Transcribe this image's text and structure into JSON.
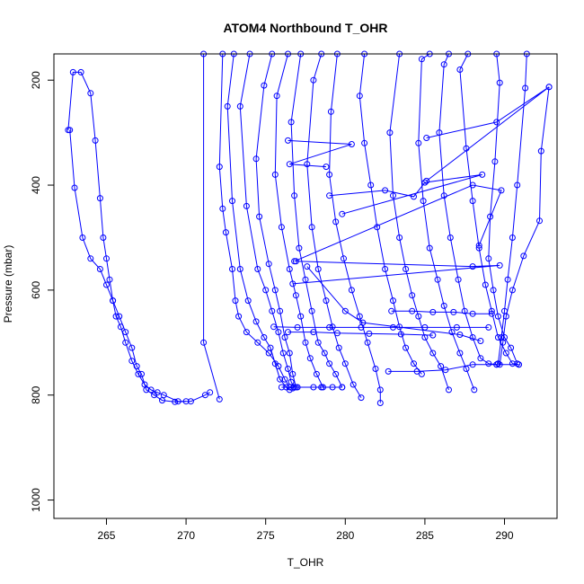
{
  "chart_data": {
    "type": "line",
    "title": "ATOM4 Northbound T_OHR",
    "xlabel": "T_OHR",
    "ylabel": "Pressure (mbar)",
    "xlim": [
      261.7,
      293.3
    ],
    "ylim": [
      1035,
      150
    ],
    "y_reversed": true,
    "grid": false,
    "legend": "none",
    "x_ticks": [
      265,
      270,
      275,
      280,
      285,
      290
    ],
    "x_tick_labels": [
      "265",
      "270",
      "275",
      "280",
      "285",
      "290"
    ],
    "y_ticks": [
      200,
      400,
      600,
      800,
      1000
    ],
    "y_tick_labels": [
      "200",
      "400",
      "600",
      "800",
      "1000"
    ],
    "color": "#0000ff",
    "marker": "open-circle",
    "series": [
      {
        "values": [
          [
            262.7,
            295
          ],
          [
            263.0,
            405
          ],
          [
            263.5,
            500
          ],
          [
            264.0,
            540
          ],
          [
            264.6,
            560
          ],
          [
            265.0,
            590
          ],
          [
            265.4,
            620
          ],
          [
            265.8,
            650
          ],
          [
            266.2,
            680
          ],
          [
            266.6,
            710
          ],
          [
            266.9,
            745
          ],
          [
            267.2,
            760
          ],
          [
            267.5,
            790
          ],
          [
            268.0,
            800
          ],
          [
            268.5,
            810
          ],
          [
            269.3,
            813
          ],
          [
            270.0,
            812
          ]
        ]
      },
      {
        "values": [
          [
            262.6,
            295
          ],
          [
            262.9,
            185
          ],
          [
            263.4,
            185
          ],
          [
            264.0,
            225
          ],
          [
            264.3,
            315
          ],
          [
            264.6,
            425
          ],
          [
            264.8,
            500
          ],
          [
            265.0,
            540
          ],
          [
            265.2,
            580
          ],
          [
            265.4,
            620
          ],
          [
            265.6,
            650
          ],
          [
            265.9,
            670
          ],
          [
            266.2,
            700
          ],
          [
            266.6,
            735
          ],
          [
            267.0,
            760
          ],
          [
            267.4,
            780
          ],
          [
            267.8,
            790
          ],
          [
            268.2,
            795
          ],
          [
            268.6,
            800
          ],
          [
            269.5,
            812
          ],
          [
            270.3,
            812
          ],
          [
            271.2,
            800
          ],
          [
            271.5,
            795
          ]
        ]
      },
      {
        "values": [
          [
            271.1,
            150
          ],
          [
            271.1,
            700
          ],
          [
            272.1,
            808
          ]
        ]
      },
      {
        "values": [
          [
            272.3,
            150
          ],
          [
            272.1,
            365
          ],
          [
            272.3,
            445
          ],
          [
            272.5,
            490
          ],
          [
            272.9,
            560
          ],
          [
            273.1,
            620
          ],
          [
            273.3,
            650
          ],
          [
            273.8,
            680
          ],
          [
            274.5,
            700
          ],
          [
            275.2,
            720
          ],
          [
            275.8,
            745
          ],
          [
            276.2,
            770
          ],
          [
            276.5,
            785
          ],
          [
            276.7,
            787
          ]
        ]
      },
      {
        "values": [
          [
            273.0,
            150
          ],
          [
            272.6,
            250
          ],
          [
            272.9,
            430
          ],
          [
            273.4,
            560
          ],
          [
            273.9,
            620
          ],
          [
            274.4,
            660
          ],
          [
            274.9,
            690
          ],
          [
            275.3,
            710
          ],
          [
            275.6,
            740
          ],
          [
            275.9,
            770
          ],
          [
            276.3,
            785
          ],
          [
            276.5,
            790
          ]
        ]
      },
      {
        "values": [
          [
            274.0,
            150
          ],
          [
            273.4,
            250
          ],
          [
            273.8,
            440
          ],
          [
            274.5,
            560
          ],
          [
            275.0,
            600
          ],
          [
            275.4,
            640
          ],
          [
            275.8,
            680
          ],
          [
            276.1,
            720
          ],
          [
            276.4,
            750
          ],
          [
            276.6,
            775
          ],
          [
            276.8,
            785
          ]
        ]
      },
      {
        "values": [
          [
            275.4,
            150
          ],
          [
            274.9,
            210
          ],
          [
            274.4,
            350
          ],
          [
            274.6,
            460
          ],
          [
            275.2,
            550
          ],
          [
            275.6,
            600
          ],
          [
            275.9,
            640
          ],
          [
            276.2,
            690
          ],
          [
            276.5,
            720
          ],
          [
            276.7,
            760
          ],
          [
            276.9,
            785
          ]
        ]
      },
      {
        "values": [
          [
            276.4,
            150
          ],
          [
            275.7,
            230
          ],
          [
            275.6,
            380
          ],
          [
            276.0,
            480
          ],
          [
            276.5,
            560
          ],
          [
            276.9,
            610
          ],
          [
            277.2,
            650
          ],
          [
            277.5,
            700
          ],
          [
            277.8,
            730
          ],
          [
            278.2,
            760
          ],
          [
            278.6,
            785
          ]
        ]
      },
      {
        "values": [
          [
            277.2,
            150
          ],
          [
            276.6,
            280
          ],
          [
            276.8,
            420
          ],
          [
            277.1,
            520
          ],
          [
            277.5,
            580
          ],
          [
            277.9,
            640
          ],
          [
            278.3,
            700
          ],
          [
            278.7,
            720
          ],
          [
            279.0,
            740
          ],
          [
            279.4,
            760
          ],
          [
            279.8,
            785
          ]
        ]
      },
      {
        "values": [
          [
            278.5,
            150
          ],
          [
            278.0,
            200
          ],
          [
            277.6,
            360
          ],
          [
            277.9,
            480
          ],
          [
            278.3,
            560
          ],
          [
            278.8,
            620
          ],
          [
            279.2,
            670
          ],
          [
            279.6,
            710
          ],
          [
            280.0,
            740
          ],
          [
            280.5,
            780
          ],
          [
            281.0,
            805
          ]
        ]
      },
      {
        "values": [
          [
            279.5,
            150
          ],
          [
            279.1,
            260
          ],
          [
            279.0,
            380
          ],
          [
            279.4,
            470
          ],
          [
            279.9,
            540
          ],
          [
            280.4,
            600
          ],
          [
            280.9,
            650
          ],
          [
            281.4,
            700
          ],
          [
            281.9,
            750
          ],
          [
            282.2,
            790
          ],
          [
            282.2,
            815
          ]
        ]
      },
      {
        "values": [
          [
            281.2,
            150
          ],
          [
            280.9,
            230
          ],
          [
            281.2,
            320
          ],
          [
            281.6,
            400
          ],
          [
            282.0,
            480
          ],
          [
            282.5,
            560
          ],
          [
            283.0,
            620
          ],
          [
            283.4,
            670
          ],
          [
            283.8,
            710
          ],
          [
            284.3,
            740
          ],
          [
            284.8,
            760
          ]
        ]
      },
      {
        "values": [
          [
            283.4,
            150
          ],
          [
            282.8,
            300
          ],
          [
            283.0,
            420
          ],
          [
            283.4,
            500
          ],
          [
            283.8,
            560
          ],
          [
            284.2,
            610
          ],
          [
            284.6,
            650
          ],
          [
            285.0,
            690
          ],
          [
            285.5,
            720
          ],
          [
            286.0,
            745
          ],
          [
            286.5,
            790
          ]
        ]
      },
      {
        "values": [
          [
            285.3,
            150
          ],
          [
            284.8,
            160
          ],
          [
            284.6,
            320
          ],
          [
            284.9,
            430
          ],
          [
            285.3,
            520
          ],
          [
            285.8,
            580
          ],
          [
            286.2,
            630
          ],
          [
            286.7,
            680
          ],
          [
            287.2,
            720
          ],
          [
            287.6,
            750
          ],
          [
            288.1,
            790
          ]
        ]
      },
      {
        "values": [
          [
            286.5,
            150
          ],
          [
            286.2,
            170
          ],
          [
            285.9,
            300
          ],
          [
            286.2,
            420
          ],
          [
            286.6,
            500
          ],
          [
            287.1,
            580
          ],
          [
            287.5,
            640
          ],
          [
            288.0,
            690
          ],
          [
            288.5,
            730
          ],
          [
            289.0,
            740
          ],
          [
            289.5,
            742
          ]
        ]
      },
      {
        "values": [
          [
            287.7,
            150
          ],
          [
            287.2,
            180
          ],
          [
            287.6,
            330
          ],
          [
            288.0,
            430
          ],
          [
            288.4,
            520
          ],
          [
            288.8,
            590
          ],
          [
            289.2,
            640
          ],
          [
            289.6,
            690
          ],
          [
            290.1,
            720
          ],
          [
            290.5,
            740
          ],
          [
            290.9,
            742
          ]
        ]
      },
      {
        "values": [
          [
            289.5,
            150
          ],
          [
            289.7,
            205
          ],
          [
            289.4,
            355
          ],
          [
            289.1,
            460
          ],
          [
            289.0,
            540
          ],
          [
            289.3,
            600
          ],
          [
            289.6,
            650
          ],
          [
            290.0,
            690
          ],
          [
            290.4,
            710
          ],
          [
            290.8,
            740
          ]
        ]
      },
      {
        "values": [
          [
            291.4,
            150
          ],
          [
            291.3,
            215
          ],
          [
            290.8,
            400
          ],
          [
            290.5,
            500
          ],
          [
            290.2,
            580
          ],
          [
            290.0,
            640
          ],
          [
            289.8,
            690
          ],
          [
            289.6,
            740
          ]
        ]
      },
      {
        "values": [
          [
            292.8,
            213
          ],
          [
            292.3,
            335
          ],
          [
            292.2,
            468
          ],
          [
            291.2,
            535
          ],
          [
            290.5,
            600
          ],
          [
            290.1,
            650
          ],
          [
            289.9,
            700
          ],
          [
            289.7,
            742
          ]
        ]
      },
      {
        "values": [
          [
            276.7,
            588
          ],
          [
            289.7,
            553
          ],
          [
            288.0,
            555
          ],
          [
            276.9,
            545
          ]
        ]
      },
      {
        "values": [
          [
            275.5,
            670
          ],
          [
            277.0,
            671
          ],
          [
            279.0,
            671
          ],
          [
            281.0,
            671
          ],
          [
            283.0,
            671
          ],
          [
            285.0,
            671
          ],
          [
            287.0,
            671
          ],
          [
            289.0,
            671
          ]
        ]
      },
      {
        "values": [
          [
            276.4,
            680
          ],
          [
            278.0,
            680
          ],
          [
            279.5,
            682
          ],
          [
            281.5,
            683
          ],
          [
            283.5,
            684
          ],
          [
            285.5,
            686
          ]
        ]
      },
      {
        "values": [
          [
            282.7,
            755
          ],
          [
            284.5,
            755
          ],
          [
            286.3,
            752
          ],
          [
            288.0,
            742
          ],
          [
            289.5,
            742
          ],
          [
            290.9,
            742
          ]
        ]
      },
      {
        "values": [
          [
            276.0,
            785
          ],
          [
            277.0,
            785
          ],
          [
            278.0,
            785
          ],
          [
            278.5,
            785
          ],
          [
            279.2,
            785
          ],
          [
            279.8,
            785
          ]
        ]
      },
      {
        "values": [
          [
            282.9,
            640
          ],
          [
            284.2,
            640
          ],
          [
            285.5,
            642
          ],
          [
            286.8,
            642
          ],
          [
            288.0,
            645
          ],
          [
            289.2,
            645
          ]
        ]
      },
      {
        "values": [
          [
            276.4,
            315
          ],
          [
            280.4,
            322
          ],
          [
            276.5,
            360
          ],
          [
            278.8,
            365
          ]
        ]
      },
      {
        "values": [
          [
            279.0,
            420
          ],
          [
            282.5,
            410
          ],
          [
            284.3,
            422
          ],
          [
            285.0,
            395
          ],
          [
            288.6,
            380
          ],
          [
            279.8,
            455
          ]
        ]
      },
      {
        "values": [
          [
            285.1,
            310
          ],
          [
            289.5,
            280
          ],
          [
            292.8,
            213
          ],
          [
            285.1,
            392
          ]
        ]
      },
      {
        "values": [
          [
            276.8,
            545
          ],
          [
            288.0,
            400
          ],
          [
            289.8,
            410
          ],
          [
            288.4,
            515
          ]
        ]
      },
      {
        "values": [
          [
            277.6,
            555
          ],
          [
            280.0,
            640
          ],
          [
            281.1,
            662
          ],
          [
            287.2,
            685
          ],
          [
            288.5,
            697
          ]
        ]
      }
    ]
  }
}
